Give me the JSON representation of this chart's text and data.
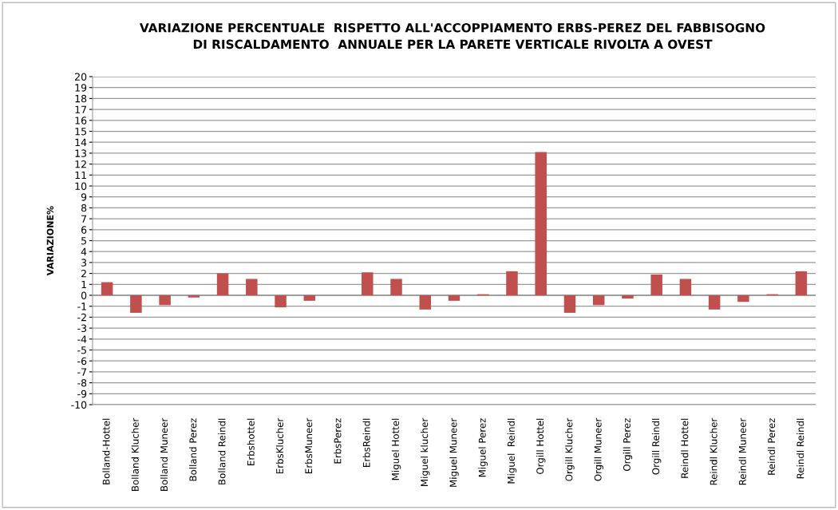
{
  "chart_data": {
    "type": "bar",
    "title": "VARIAZIONE PERCENTUALE  RISPETTO ALL'ACCOPPIAMENTO ERBS-PEREZ DEL FABBISOGNO\nDI RISCALDAMENTO  ANNUALE PER LA PARETE VERTICALE RIVOLTA A OVEST",
    "ylabel": "VARIAZIONE%",
    "categories": [
      "Bolland-Hottel",
      "Bolland Klucher",
      "Bolland Muneer",
      "Bolland Perez",
      "Bolland Reindl",
      "Erbshottel",
      "ErbsKlucher",
      "ErbsMuneer",
      "ErbsPerez",
      "ErbsReindl",
      "Miguel Hottel",
      "Miguel klucher",
      "Miguel Muneer",
      "Miguel Perez",
      "Miguel  Reindl",
      "Orgill Hottel",
      "Orgill Klucher",
      "Orgill Muneer",
      "Orgill Perez",
      "Orgill Reindl",
      "Reindl Hottel",
      "Reindl Klucher",
      "Reindl Muneer",
      "Reindl Perez",
      "Reindl Reindl"
    ],
    "values": [
      1.2,
      -1.6,
      -0.9,
      -0.2,
      2.0,
      1.5,
      -1.1,
      -0.5,
      0,
      2.1,
      1.5,
      -1.3,
      -0.5,
      0.1,
      2.2,
      13.1,
      -1.6,
      -0.9,
      -0.3,
      1.9,
      1.5,
      -1.3,
      -0.6,
      0.1,
      2.2
    ],
    "color": "#c0504d",
    "ylim": [
      -10,
      20
    ],
    "yticks": [
      -10,
      -9,
      -8,
      -7,
      -6,
      -5,
      -4,
      -3,
      -2,
      -1,
      0,
      1,
      2,
      3,
      4,
      5,
      6,
      7,
      8,
      9,
      10,
      11,
      12,
      13,
      14,
      15,
      16,
      17,
      18,
      19,
      20
    ],
    "grid": "y",
    "legend": false
  }
}
